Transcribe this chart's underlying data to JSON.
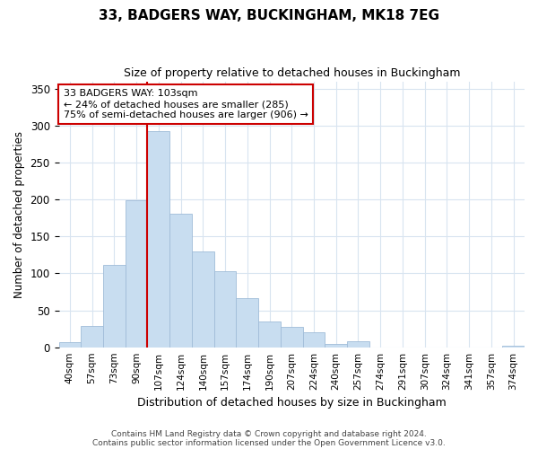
{
  "title": "33, BADGERS WAY, BUCKINGHAM, MK18 7EG",
  "subtitle": "Size of property relative to detached houses in Buckingham",
  "xlabel": "Distribution of detached houses by size in Buckingham",
  "ylabel": "Number of detached properties",
  "bar_color": "#c8ddf0",
  "bar_edge_color": "#a0bcd8",
  "categories": [
    "40sqm",
    "57sqm",
    "73sqm",
    "90sqm",
    "107sqm",
    "124sqm",
    "140sqm",
    "157sqm",
    "174sqm",
    "190sqm",
    "207sqm",
    "224sqm",
    "240sqm",
    "257sqm",
    "274sqm",
    "291sqm",
    "307sqm",
    "324sqm",
    "341sqm",
    "357sqm",
    "374sqm"
  ],
  "values": [
    7,
    29,
    111,
    199,
    292,
    181,
    130,
    103,
    67,
    35,
    27,
    20,
    5,
    8,
    0,
    0,
    0,
    0,
    0,
    0,
    2
  ],
  "vline_index": 4,
  "vline_color": "#cc0000",
  "ylim": [
    0,
    360
  ],
  "yticks": [
    0,
    50,
    100,
    150,
    200,
    250,
    300,
    350
  ],
  "annotation_text": "33 BADGERS WAY: 103sqm\n← 24% of detached houses are smaller (285)\n75% of semi-detached houses are larger (906) →",
  "annotation_box_edge": "#cc0000",
  "footer1": "Contains HM Land Registry data © Crown copyright and database right 2024.",
  "footer2": "Contains public sector information licensed under the Open Government Licence v3.0.",
  "background_color": "#ffffff",
  "grid_color": "#d8e4f0"
}
